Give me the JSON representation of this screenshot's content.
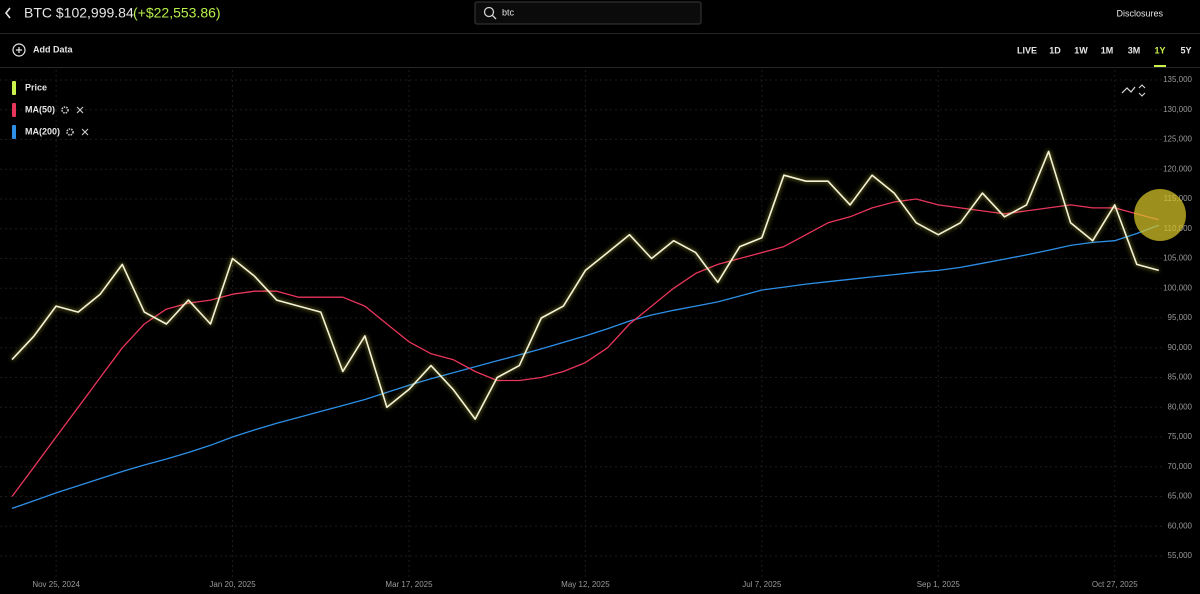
{
  "header": {
    "symbol_price": "BTC $102,999.84",
    "change": "(+$22,553.86)",
    "search": "btc",
    "disclosures": "Disclosures"
  },
  "toolbar": {
    "add_data": "Add Data",
    "ranges": [
      "LIVE",
      "1D",
      "1W",
      "1M",
      "3M",
      "1Y",
      "5Y"
    ],
    "active_range": "1Y"
  },
  "chart_data": {
    "type": "line",
    "x": [
      "2024-11-11",
      "2024-11-18",
      "2024-11-25",
      "2024-12-02",
      "2024-12-09",
      "2024-12-16",
      "2024-12-23",
      "2024-12-30",
      "2025-01-06",
      "2025-01-13",
      "2025-01-20",
      "2025-01-27",
      "2025-02-03",
      "2025-02-10",
      "2025-02-17",
      "2025-02-24",
      "2025-03-03",
      "2025-03-10",
      "2025-03-17",
      "2025-03-24",
      "2025-03-31",
      "2025-04-07",
      "2025-04-14",
      "2025-04-21",
      "2025-04-28",
      "2025-05-05",
      "2025-05-12",
      "2025-05-19",
      "2025-05-26",
      "2025-06-02",
      "2025-06-09",
      "2025-06-16",
      "2025-06-23",
      "2025-06-30",
      "2025-07-07",
      "2025-07-14",
      "2025-07-21",
      "2025-07-28",
      "2025-08-04",
      "2025-08-11",
      "2025-08-18",
      "2025-08-25",
      "2025-09-01",
      "2025-09-08",
      "2025-09-15",
      "2025-09-22",
      "2025-09-29",
      "2025-10-06",
      "2025-10-13",
      "2025-10-20",
      "2025-10-27",
      "2025-11-03",
      "2025-11-10"
    ],
    "series": [
      {
        "name": "Price",
        "color": "#f5f3d6",
        "legend_color": "#c9f24a",
        "values": [
          88000,
          92000,
          97000,
          96000,
          99000,
          104000,
          96000,
          94000,
          98000,
          94000,
          105000,
          102000,
          98000,
          97000,
          96000,
          86000,
          92000,
          80000,
          83000,
          87000,
          83000,
          78000,
          85000,
          87000,
          95000,
          97000,
          103000,
          106000,
          109000,
          105000,
          108000,
          106000,
          101000,
          107000,
          108500,
          119000,
          118000,
          118000,
          114000,
          119000,
          116000,
          111000,
          109000,
          111000,
          116000,
          112000,
          114000,
          123000,
          111000,
          108000,
          114000,
          104000,
          103000
        ]
      },
      {
        "name": "MA(50)",
        "color": "#e8355a",
        "legend_color": "#e8355a",
        "values": [
          65000,
          70000,
          75000,
          80000,
          85000,
          90000,
          94000,
          96500,
          97500,
          98000,
          99000,
          99500,
          99500,
          98500,
          98500,
          98500,
          97000,
          94000,
          91000,
          89000,
          88000,
          86000,
          84500,
          84500,
          85000,
          86000,
          87500,
          90000,
          94000,
          97000,
          100000,
          102500,
          104000,
          105000,
          106000,
          107000,
          109000,
          111000,
          112000,
          113500,
          114500,
          115000,
          114000,
          113500,
          113000,
          112500,
          113000,
          113500,
          114000,
          113500,
          113500,
          112500,
          111500
        ]
      },
      {
        "name": "MA(200)",
        "color": "#2d8fe6",
        "legend_color": "#2d8fe6",
        "values": [
          63000,
          64300,
          65600,
          66800,
          68000,
          69200,
          70300,
          71300,
          72400,
          73600,
          75000,
          76200,
          77300,
          78300,
          79300,
          80300,
          81300,
          82500,
          83700,
          84800,
          85800,
          86800,
          87800,
          88800,
          89800,
          90900,
          92000,
          93200,
          94500,
          95500,
          96300,
          97000,
          97700,
          98700,
          99700,
          100200,
          100700,
          101100,
          101500,
          101900,
          102300,
          102700,
          103000,
          103500,
          104200,
          104900,
          105600,
          106400,
          107200,
          107700,
          108000,
          109200,
          110600
        ]
      }
    ],
    "xlim": [
      "2024-11-11",
      "2025-11-11"
    ],
    "xticks": [
      {
        "value": "2024-11-25",
        "label": "Nov 25, 2024"
      },
      {
        "value": "2025-01-20",
        "label": "Jan 20, 2025"
      },
      {
        "value": "2025-03-17",
        "label": "Mar 17, 2025"
      },
      {
        "value": "2025-05-12",
        "label": "May 12, 2025"
      },
      {
        "value": "2025-07-07",
        "label": "Jul 7, 2025"
      },
      {
        "value": "2025-09-01",
        "label": "Sep 1, 2025"
      },
      {
        "value": "2025-10-27",
        "label": "Oct 27, 2025"
      }
    ],
    "ylim": [
      55000,
      135000
    ],
    "yticks": [
      {
        "value": 55000,
        "label": "55,000"
      },
      {
        "value": 60000,
        "label": "60,000"
      },
      {
        "value": 65000,
        "label": "65,000"
      },
      {
        "value": 70000,
        "label": "70,000"
      },
      {
        "value": 75000,
        "label": "75,000"
      },
      {
        "value": 80000,
        "label": "80,000"
      },
      {
        "value": 85000,
        "label": "85,000"
      },
      {
        "value": 90000,
        "label": "90,000"
      },
      {
        "value": 95000,
        "label": "95,000"
      },
      {
        "value": 100000,
        "label": "100,000"
      },
      {
        "value": 105000,
        "label": "105,000"
      },
      {
        "value": 110000,
        "label": "110,000"
      },
      {
        "value": 115000,
        "label": "115,000"
      },
      {
        "value": 120000,
        "label": "120,000"
      },
      {
        "value": 125000,
        "label": "125,000"
      },
      {
        "value": 130000,
        "label": "130,000"
      },
      {
        "value": 135000,
        "label": "135,000"
      }
    ],
    "grid": true
  }
}
